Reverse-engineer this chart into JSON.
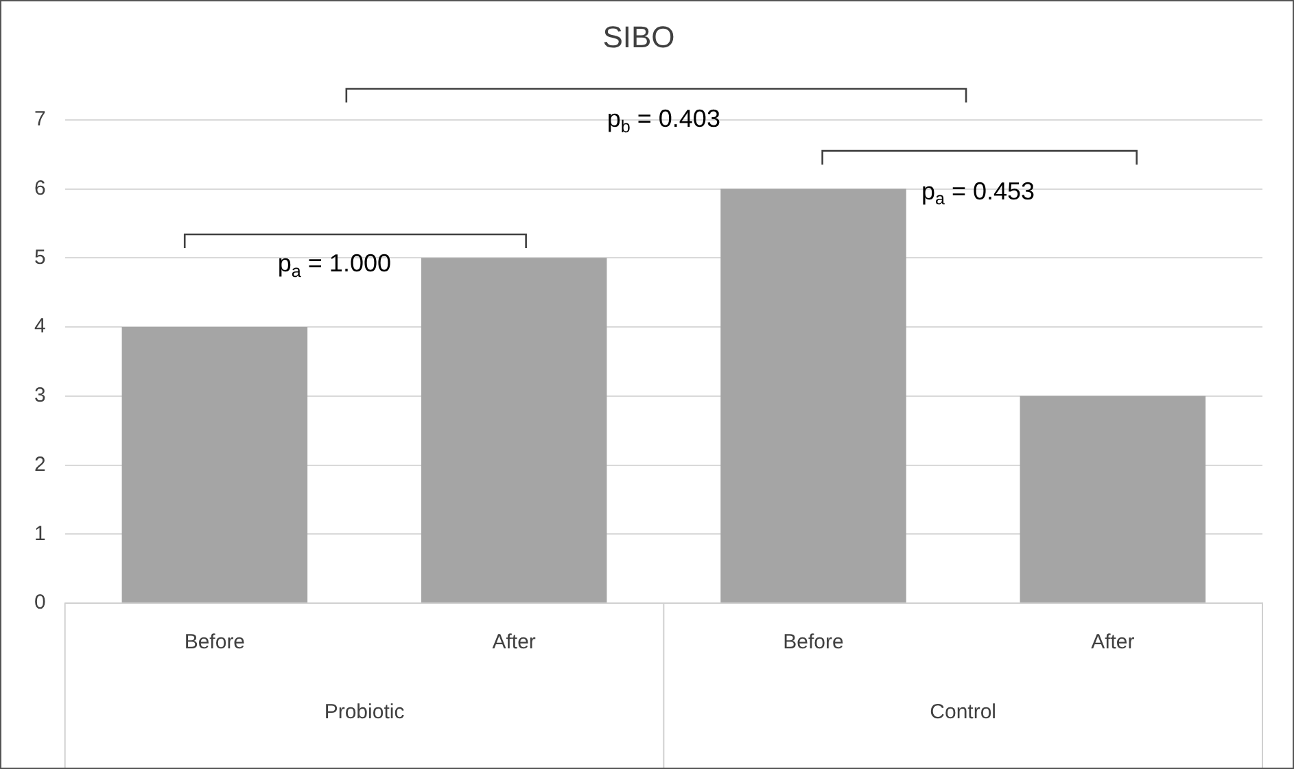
{
  "chart_data": {
    "type": "bar",
    "title": "SIBO",
    "categories": [
      "Before",
      "After",
      "Before",
      "After"
    ],
    "values": [
      4,
      5,
      6,
      3
    ],
    "color": "#a5a5a5",
    "ylim": [
      0,
      7
    ],
    "yticks": [
      0,
      1,
      2,
      3,
      4,
      5,
      6,
      7
    ],
    "grid": "y",
    "legend": false,
    "annotations": [
      "p$_{a}$ = 1.000",
      "p$_{b}$ = 0.403",
      "p$_{a}$ = 0.453",
      "Probiotic",
      "Control"
    ]
  }
}
